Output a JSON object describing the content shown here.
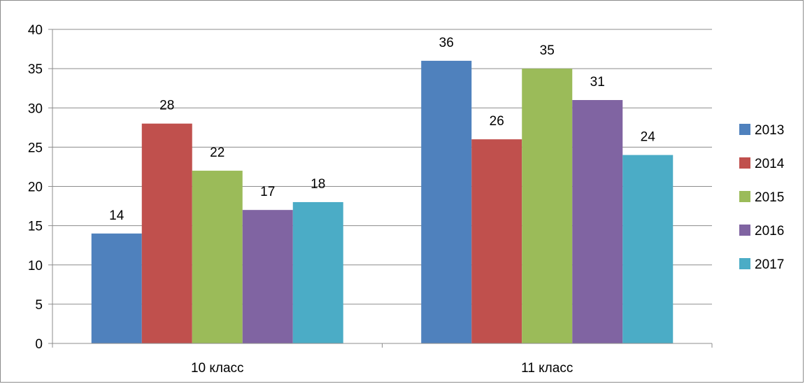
{
  "chart_data": {
    "type": "bar",
    "categories": [
      "10 класс",
      "11 класс"
    ],
    "series": [
      {
        "name": "2013",
        "values": [
          14,
          36
        ],
        "color": "#4F81BD"
      },
      {
        "name": "2014",
        "values": [
          28,
          26
        ],
        "color": "#C0504D"
      },
      {
        "name": "2015",
        "values": [
          22,
          35
        ],
        "color": "#9BBB59"
      },
      {
        "name": "2016",
        "values": [
          17,
          31
        ],
        "color": "#8064A2"
      },
      {
        "name": "2017",
        "values": [
          18,
          24
        ],
        "color": "#4BACC6"
      }
    ],
    "title": "",
    "xlabel": "",
    "ylabel": "",
    "ylim": [
      0,
      40
    ],
    "yticks": [
      0,
      5,
      10,
      15,
      20,
      25,
      30,
      35,
      40
    ],
    "grid": true,
    "legend": "right",
    "data_labels": true
  }
}
